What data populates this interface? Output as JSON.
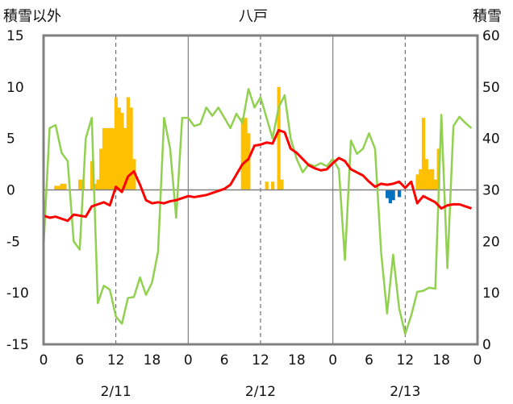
{
  "chart_data": {
    "type": "bar+line",
    "title": "八戸",
    "left_axis_label": "積雪以外",
    "right_axis_label": "積雪",
    "left_ylim": [
      -15,
      15
    ],
    "left_ticks": [
      "15",
      "10",
      "5",
      "0",
      "-5",
      "-10",
      "-15"
    ],
    "right_ylim": [
      0,
      60
    ],
    "right_ticks": [
      "60",
      "50",
      "40",
      "30",
      "20",
      "10",
      "0"
    ],
    "x_hour_ticks": [
      "0",
      "6",
      "12",
      "18",
      "0",
      "6",
      "12",
      "18",
      "0",
      "6",
      "12",
      "18",
      "0"
    ],
    "x_date_labels": [
      "2/11",
      "2/12",
      "2/13"
    ],
    "grid": "dashed vertical lines at 12h",
    "colors": {
      "bar_pos": "#FFC000",
      "bar_neg": "#0070C0",
      "red_line": "#FF0000",
      "green_line": "#92D050",
      "purple_line": "#7030A0",
      "frame": "#808080"
    },
    "bars": [
      {
        "h": 2,
        "v": 0.4
      },
      {
        "h": 2.5,
        "v": 0.4
      },
      {
        "h": 3,
        "v": 0.6
      },
      {
        "h": 3.5,
        "v": 0.6
      },
      {
        "h": 6,
        "v": 1
      },
      {
        "h": 6.5,
        "v": 1
      },
      {
        "h": 8,
        "v": 2.8
      },
      {
        "h": 8.5,
        "v": 0.6
      },
      {
        "h": 9,
        "v": 1
      },
      {
        "h": 9.5,
        "v": 4
      },
      {
        "h": 10,
        "v": 6
      },
      {
        "h": 10.5,
        "v": 6
      },
      {
        "h": 11,
        "v": 6
      },
      {
        "h": 11.5,
        "v": 6
      },
      {
        "h": 12,
        "v": 9
      },
      {
        "h": 12.5,
        "v": 8
      },
      {
        "h": 13,
        "v": 7.5
      },
      {
        "h": 13.5,
        "v": 6
      },
      {
        "h": 14,
        "v": 9
      },
      {
        "h": 14.5,
        "v": 8
      },
      {
        "h": 15,
        "v": 3
      },
      {
        "h": 33,
        "v": 7
      },
      {
        "h": 33.5,
        "v": 7
      },
      {
        "h": 34,
        "v": 5.5
      },
      {
        "h": 37,
        "v": 0.8
      },
      {
        "h": 38,
        "v": 0.8
      },
      {
        "h": 39,
        "v": 10
      },
      {
        "h": 39.5,
        "v": 1
      },
      {
        "h": 57,
        "v": -0.8
      },
      {
        "h": 57.5,
        "v": -1.3
      },
      {
        "h": 58,
        "v": -1
      },
      {
        "h": 59,
        "v": -0.7
      },
      {
        "h": 62,
        "v": 1.5
      },
      {
        "h": 62.5,
        "v": 2
      },
      {
        "h": 63,
        "v": 7
      },
      {
        "h": 63.5,
        "v": 3
      },
      {
        "h": 64,
        "v": 2
      },
      {
        "h": 64.5,
        "v": 2
      },
      {
        "h": 65,
        "v": 1
      },
      {
        "h": 65.5,
        "v": 4
      }
    ],
    "red_series": [
      [
        0,
        -2.5
      ],
      [
        1,
        -2.7
      ],
      [
        2,
        -2.6
      ],
      [
        3,
        -2.8
      ],
      [
        4,
        -3.0
      ],
      [
        5,
        -2.4
      ],
      [
        6,
        -2.5
      ],
      [
        7,
        -2.6
      ],
      [
        8,
        -1.6
      ],
      [
        9,
        -1.4
      ],
      [
        10,
        -1.2
      ],
      [
        11,
        -1.5
      ],
      [
        12,
        0.3
      ],
      [
        13,
        -0.2
      ],
      [
        14,
        1.3
      ],
      [
        15,
        1.8
      ],
      [
        16,
        0.5
      ],
      [
        17,
        -1.0
      ],
      [
        18,
        -1.3
      ],
      [
        19,
        -1.2
      ],
      [
        20,
        -1.3
      ],
      [
        21,
        -1.1
      ],
      [
        22,
        -1.0
      ],
      [
        23,
        -0.8
      ],
      [
        24,
        -0.6
      ],
      [
        25,
        -0.7
      ],
      [
        26,
        -0.6
      ],
      [
        27,
        -0.5
      ],
      [
        28,
        -0.3
      ],
      [
        29,
        -0.1
      ],
      [
        30,
        0.1
      ],
      [
        31,
        0.5
      ],
      [
        32,
        1.5
      ],
      [
        33,
        2.5
      ],
      [
        34,
        3.0
      ],
      [
        35,
        4.3
      ],
      [
        36,
        4.4
      ],
      [
        37,
        4.6
      ],
      [
        38,
        4.5
      ],
      [
        39,
        5.8
      ],
      [
        40,
        5.6
      ],
      [
        41,
        4.0
      ],
      [
        42,
        3.6
      ],
      [
        43,
        3.0
      ],
      [
        44,
        2.4
      ],
      [
        45,
        2.1
      ],
      [
        46,
        1.9
      ],
      [
        47,
        2.0
      ],
      [
        48,
        2.6
      ],
      [
        49,
        3.1
      ],
      [
        50,
        2.8
      ],
      [
        51,
        2.0
      ],
      [
        52,
        1.7
      ],
      [
        53,
        1.4
      ],
      [
        54,
        0.8
      ],
      [
        55,
        0.3
      ],
      [
        56,
        0.6
      ],
      [
        57,
        0.5
      ],
      [
        58,
        0.6
      ],
      [
        59,
        0.8
      ],
      [
        60,
        0.2
      ],
      [
        61,
        0.8
      ],
      [
        62,
        -1.3
      ],
      [
        63,
        -0.6
      ],
      [
        64,
        -0.9
      ],
      [
        65,
        -1.2
      ],
      [
        66,
        -1.8
      ],
      [
        67,
        -1.5
      ],
      [
        68,
        -1.4
      ],
      [
        69,
        -1.4
      ],
      [
        70,
        -1.6
      ],
      [
        71,
        -1.8
      ]
    ],
    "green_series": [
      [
        0,
        -5.5
      ],
      [
        1,
        6.0
      ],
      [
        2,
        6.3
      ],
      [
        3,
        3.6
      ],
      [
        4,
        2.8
      ],
      [
        5,
        -5.0
      ],
      [
        6,
        -5.8
      ],
      [
        7,
        5.0
      ],
      [
        8,
        7.0
      ],
      [
        9,
        -11.0
      ],
      [
        10,
        -9.3
      ],
      [
        11,
        -9.7
      ],
      [
        12,
        -12.3
      ],
      [
        13,
        -13.0
      ],
      [
        14,
        -10.5
      ],
      [
        15,
        -10.4
      ],
      [
        16,
        -8.5
      ],
      [
        17,
        -10.2
      ],
      [
        18,
        -9.0
      ],
      [
        19,
        -6.0
      ],
      [
        20,
        7.0
      ],
      [
        21,
        4.0
      ],
      [
        22,
        -2.7
      ],
      [
        23,
        7.0
      ],
      [
        24,
        7.0
      ],
      [
        25,
        6.2
      ],
      [
        26,
        6.4
      ],
      [
        27,
        8.0
      ],
      [
        28,
        7.2
      ],
      [
        29,
        8.0
      ],
      [
        30,
        7.0
      ],
      [
        31,
        6.0
      ],
      [
        32,
        7.4
      ],
      [
        33,
        6.5
      ],
      [
        34,
        9.8
      ],
      [
        35,
        8.0
      ],
      [
        36,
        9.0
      ],
      [
        37,
        7.0
      ],
      [
        38,
        5.0
      ],
      [
        39,
        8.0
      ],
      [
        40,
        9.2
      ],
      [
        41,
        5.0
      ],
      [
        42,
        3.0
      ],
      [
        43,
        1.7
      ],
      [
        44,
        2.5
      ],
      [
        45,
        2.3
      ],
      [
        46,
        2.6
      ],
      [
        47,
        2.3
      ],
      [
        48,
        3.0
      ],
      [
        49,
        2.0
      ],
      [
        50,
        -6.8
      ],
      [
        51,
        4.8
      ],
      [
        52,
        3.5
      ],
      [
        53,
        4.0
      ],
      [
        54,
        5.5
      ],
      [
        55,
        4.0
      ],
      [
        56,
        -6.0
      ],
      [
        57,
        -12.0
      ],
      [
        58,
        -6.3
      ],
      [
        59,
        -11.5
      ],
      [
        60,
        -14.0
      ],
      [
        61,
        -12.2
      ],
      [
        62,
        -9.9
      ],
      [
        63,
        -9.8
      ],
      [
        64,
        -9.5
      ],
      [
        65,
        -9.6
      ],
      [
        66,
        7.3
      ],
      [
        67,
        -7.6
      ],
      [
        68,
        6.2
      ],
      [
        69,
        7.1
      ],
      [
        70,
        6.5
      ],
      [
        71,
        6.0
      ]
    ],
    "purple_series_right": [
      [
        0,
        0
      ],
      [
        72,
        0
      ]
    ]
  }
}
